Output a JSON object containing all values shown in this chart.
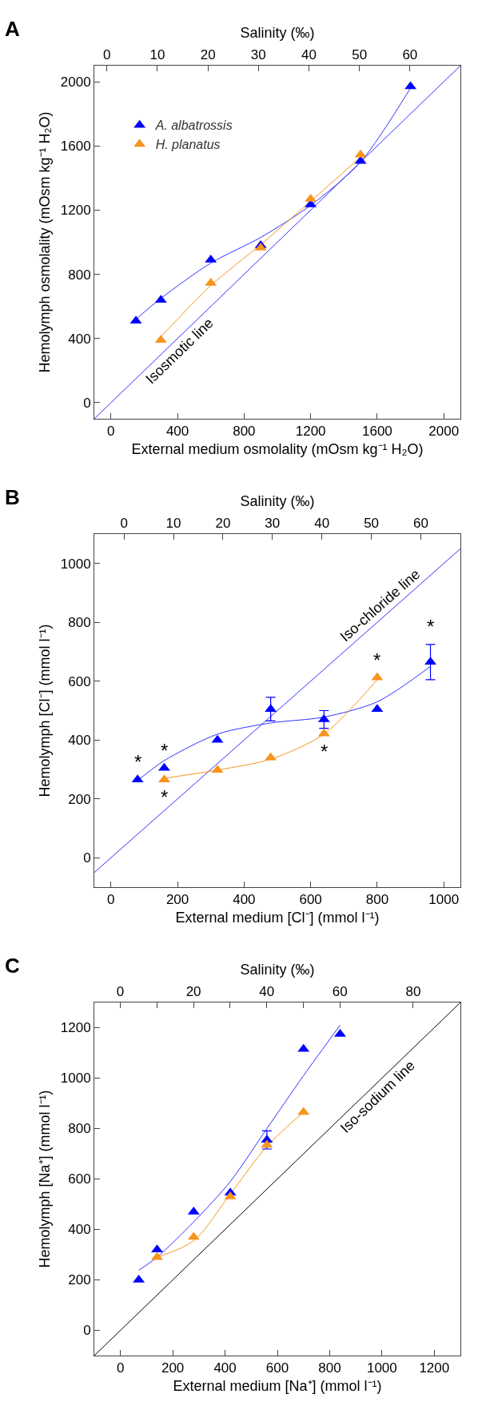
{
  "chart_data": [
    {
      "type": "scatter",
      "title": "A",
      "xlabel": "External medium osmolality (mOsm kg⁻¹ H₂O)",
      "ylabel": "Hemolymph osmolality (mOsm kg⁻¹ H₂O)",
      "x2label": "Salinity (‰)",
      "xlim": [
        -100,
        2100
      ],
      "xticks": [
        0,
        400,
        800,
        1200,
        1600,
        2000
      ],
      "ylim": [
        -100,
        2100
      ],
      "yticks": [
        0,
        400,
        800,
        1200,
        1600,
        2000
      ],
      "x2lim": [
        -2.5,
        70
      ],
      "x2ticks": [
        0,
        10,
        20,
        30,
        40,
        50,
        60
      ],
      "marker": "triangle",
      "legend": "top left",
      "grid": false,
      "series": [
        {
          "type": "line",
          "color": "#3333ff",
          "marker": "none",
          "x": [
            -100,
            2100
          ],
          "values": [
            -100,
            2100
          ]
        },
        {
          "type": "line",
          "color": "#3333ff",
          "marker": "none",
          "x": [
            150,
            300,
            600,
            900,
            1200,
            1500,
            1800
          ],
          "values": [
            520,
            650,
            870,
            1030,
            1230,
            1500,
            1960
          ]
        },
        {
          "type": "line",
          "color": "#f7941d",
          "marker": "none",
          "x": [
            300,
            600,
            900,
            1200,
            1500
          ],
          "values": [
            410,
            730,
            985,
            1255,
            1530
          ]
        },
        {
          "name": "A. albatrossis",
          "color": "#0000ff",
          "x": [
            150,
            300,
            600,
            900,
            1200,
            1500,
            1800
          ],
          "values": [
            510,
            640,
            890,
            980,
            1235,
            1505,
            1970
          ]
        },
        {
          "name": "H. planatus",
          "color": "#f7941d",
          "x": [
            300,
            600,
            900,
            1200,
            1500
          ],
          "values": [
            390,
            745,
            965,
            1270,
            1545
          ]
        }
      ],
      "annotations": [
        {
          "text": "Isosmotic line",
          "x": 370,
          "y": 370
        }
      ]
    },
    {
      "type": "scatter",
      "title": "B",
      "xlabel": "External medium [Cl⁻] (mmol l⁻¹)",
      "ylabel": "Hemolymph [Cl⁻] (mmol l⁻¹)",
      "x2label": "Salinity (‰)",
      "xlim": [
        -50,
        1050
      ],
      "xticks": [
        0,
        200,
        400,
        600,
        800,
        1000
      ],
      "ylim": [
        -100,
        1100
      ],
      "yticks": [
        0,
        200,
        400,
        600,
        800,
        1000
      ],
      "x2lim": [
        -6,
        68
      ],
      "x2ticks": [
        0,
        10,
        20,
        30,
        40,
        50,
        60
      ],
      "marker": "triangle",
      "grid": false,
      "series": [
        {
          "type": "line",
          "color": "#3333ff",
          "marker": "none",
          "x": [
            -50,
            1050
          ],
          "values": [
            -50,
            1050
          ]
        },
        {
          "type": "line",
          "color": "#3333ff",
          "marker": "none",
          "x": [
            80,
            160,
            320,
            480,
            640,
            800,
            960
          ],
          "values": [
            262,
            330,
            420,
            458,
            478,
            530,
            650
          ]
        },
        {
          "type": "line",
          "color": "#f7941d",
          "marker": "none",
          "x": [
            160,
            320,
            480,
            640,
            800
          ],
          "values": [
            270,
            298,
            335,
            420,
            605
          ]
        },
        {
          "color": "#0000ff",
          "x": [
            80,
            160,
            320,
            480,
            640,
            800,
            960
          ],
          "values": [
            265,
            305,
            400,
            505,
            470,
            505,
            665
          ],
          "errors": [
            null,
            null,
            null,
            40,
            30,
            null,
            60
          ]
        },
        {
          "color": "#f7941d",
          "x": [
            160,
            320,
            480,
            640,
            800
          ],
          "values": [
            265,
            298,
            340,
            422,
            612
          ]
        }
      ],
      "annotations": [
        {
          "text": "Iso-chloride line",
          "x": 830,
          "y": 830
        },
        {
          "text": "*",
          "x": 80,
          "y": 265
        },
        {
          "text": "*",
          "x": 160,
          "y": 305
        },
        {
          "text": "*",
          "x": 160,
          "y": 265
        },
        {
          "text": "*",
          "x": 640,
          "y": 422
        },
        {
          "text": "*",
          "x": 800,
          "y": 612
        },
        {
          "text": "*",
          "x": 960,
          "y": 665
        }
      ]
    },
    {
      "type": "scatter",
      "title": "C",
      "xlabel": "External medium [Na⁺] (mmol l⁻¹)",
      "ylabel": "Hemolymph [Na⁺] (mmol l⁻¹)",
      "x2label": "Salinity (‰)",
      "xlim": [
        -100,
        1300
      ],
      "xticks": [
        0,
        200,
        400,
        600,
        800,
        1000,
        1200
      ],
      "ylim": [
        -100,
        1300
      ],
      "yticks": [
        0,
        200,
        400,
        600,
        800,
        1000,
        1200
      ],
      "x2lim": [
        -7.1,
        92.9
      ],
      "x2ticks": [
        0,
        {
          "value": 10,
          "label": null
        },
        20,
        {
          "value": 30,
          "label": null
        },
        40,
        {
          "value": 50,
          "label": null
        },
        60,
        80
      ],
      "marker": "triangle",
      "grid": false,
      "series": [
        {
          "type": "line",
          "color": "#000000",
          "marker": "none",
          "x": [
            -100,
            1300
          ],
          "values": [
            -100,
            1300
          ]
        },
        {
          "type": "line",
          "color": "#3333ff",
          "marker": "none",
          "x": [
            70,
            140,
            280,
            420,
            560,
            700,
            840
          ],
          "values": [
            238,
            290,
            430,
            590,
            800,
            1010,
            1210
          ]
        },
        {
          "type": "line",
          "color": "#f7941d",
          "marker": "none",
          "x": [
            140,
            280,
            420,
            560,
            700
          ],
          "values": [
            290,
            355,
            540,
            730,
            865
          ]
        },
        {
          "color": "#0000ff",
          "x": [
            70,
            140,
            280,
            420,
            560,
            700,
            840
          ],
          "values": [
            200,
            320,
            470,
            545,
            755,
            1115,
            1175
          ],
          "errors": [
            null,
            null,
            null,
            null,
            36,
            null,
            null
          ]
        },
        {
          "color": "#f7941d",
          "x": [
            140,
            280,
            420,
            560,
            700
          ],
          "values": [
            290,
            370,
            530,
            735,
            865
          ]
        }
      ],
      "annotations": [
        {
          "text": "Iso-sodium line",
          "x": 955,
          "y": 955
        }
      ]
    }
  ]
}
